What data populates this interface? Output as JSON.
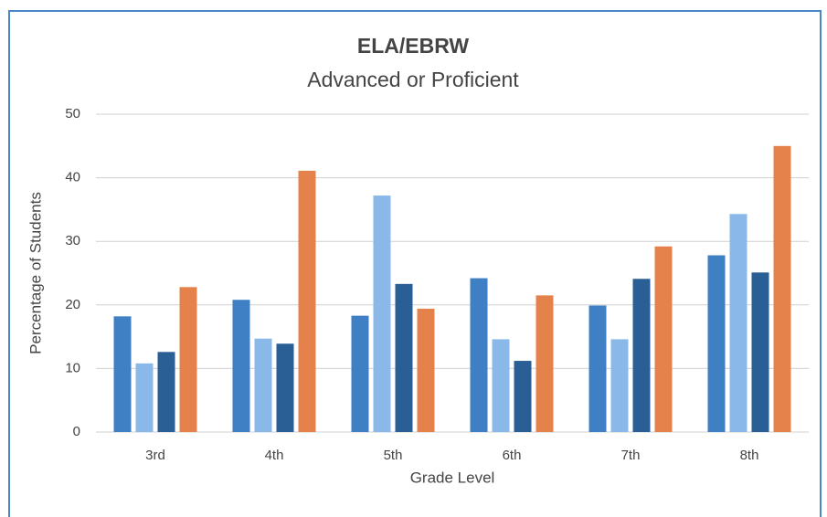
{
  "chart_data": {
    "type": "bar",
    "title": "ELA/EBRW",
    "subtitle": "Advanced or Proficient",
    "x_label": "Grade Level",
    "y_label": "Percentage of Students",
    "categories": [
      "3rd",
      "4th",
      "5th",
      "6th",
      "7th",
      "8th"
    ],
    "series": [
      {
        "color": "#3f7fc4",
        "values": [
          18.2,
          20.8,
          18.3,
          24.2,
          19.9,
          27.8
        ]
      },
      {
        "color": "#8ab8e8",
        "values": [
          10.8,
          14.7,
          37.2,
          14.6,
          14.6,
          34.3
        ]
      },
      {
        "color": "#2a5f96",
        "values": [
          12.6,
          13.9,
          23.3,
          11.2,
          24.1,
          25.1
        ]
      },
      {
        "color": "#e5814a",
        "values": [
          22.8,
          41.1,
          19.4,
          21.5,
          29.2,
          45.0
        ]
      }
    ],
    "ylim": [
      0,
      50
    ],
    "yticks": [
      0,
      10,
      20,
      30,
      40,
      50
    ],
    "grid": true
  }
}
